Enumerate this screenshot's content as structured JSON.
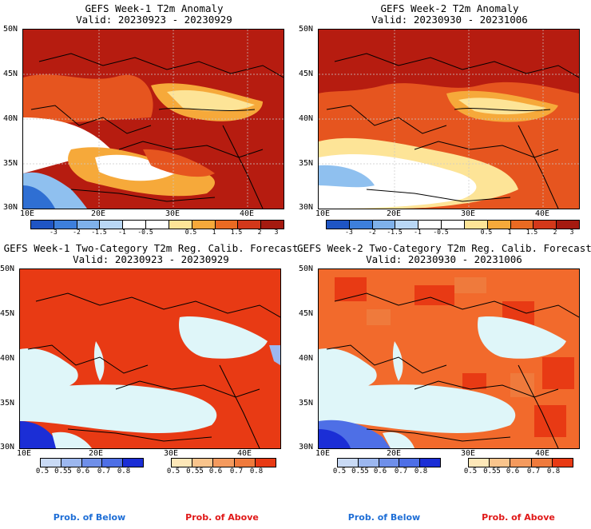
{
  "colors": {
    "sea": "#dff6f9",
    "land_above_1": "#e83a14",
    "land_above_2": "#f26a2c",
    "land_above_3": "#ef7a3c",
    "below_strong": "#1b2ed6",
    "below_mid": "#4e6fe6",
    "below_light": "#9cb7ef",
    "anom_hot": "#b61c10",
    "anom_warm": "#e6551f",
    "anom_mild": "#f6a93a",
    "anom_light": "#fde497",
    "anom_white": "#ffffff",
    "anom_cool": "#8fc0ef",
    "anom_cold": "#2f6fd3",
    "foot_below": "#1e6ed6",
    "foot_above": "#e01818"
  },
  "panels": [
    {
      "title_line1": "GEFS Week-1 T2m Anomaly",
      "title_line2": "Valid: 20230923 - 20230929",
      "lat_labels": [
        "50N",
        "45N",
        "40N",
        "35N",
        "30N"
      ],
      "lon_labels": [
        "10E",
        "20E",
        "30E",
        "40E"
      ],
      "colorbar_ticks": [
        "-3",
        "-2",
        "-1.5",
        "-1",
        "-0.5",
        "0.5",
        "1",
        "1.5",
        "2",
        "3"
      ],
      "type": "anomaly"
    },
    {
      "title_line1": "GEFS Week-2 T2m Anomaly",
      "title_line2": "Valid: 20230930 - 20231006",
      "lat_labels": [
        "50N",
        "45N",
        "40N",
        "35N",
        "30N"
      ],
      "lon_labels": [
        "10E",
        "20E",
        "30E",
        "40E"
      ],
      "colorbar_ticks": [
        "-3",
        "-2",
        "-1.5",
        "-1",
        "-0.5",
        "0.5",
        "1",
        "1.5",
        "2",
        "3"
      ],
      "type": "anomaly"
    },
    {
      "title_line1": "GEFS Week-1 Two-Category T2m Reg. Calib. Forecast",
      "title_line2": "Valid: 20230923 - 20230929",
      "lat_labels": [
        "50N",
        "45N",
        "40N",
        "35N",
        "30N"
      ],
      "lon_labels": [
        "10E",
        "20E",
        "30E",
        "40E"
      ],
      "below_ticks": [
        "0.5",
        "0.55",
        "0.6",
        "0.7",
        "0.8"
      ],
      "above_ticks": [
        "0.5",
        "0.55",
        "0.6",
        "0.7",
        "0.8"
      ],
      "type": "prob"
    },
    {
      "title_line1": "GEFS Week-2 Two-Category T2m Reg. Calib. Forecast",
      "title_line2": "Valid: 20230930 - 20231006",
      "lat_labels": [
        "50N",
        "45N",
        "40N",
        "35N",
        "30N"
      ],
      "lon_labels": [
        "10E",
        "20E",
        "30E",
        "40E"
      ],
      "below_ticks": [
        "0.5",
        "0.55",
        "0.6",
        "0.7",
        "0.8"
      ],
      "above_ticks": [
        "0.5",
        "0.55",
        "0.6",
        "0.7",
        "0.8"
      ],
      "type": "prob"
    }
  ],
  "footer": {
    "below_left": "Prob. of Below",
    "above_left": "Prob. of Above",
    "below_right": "Prob. of Below",
    "above_right": "Prob. of Above"
  }
}
